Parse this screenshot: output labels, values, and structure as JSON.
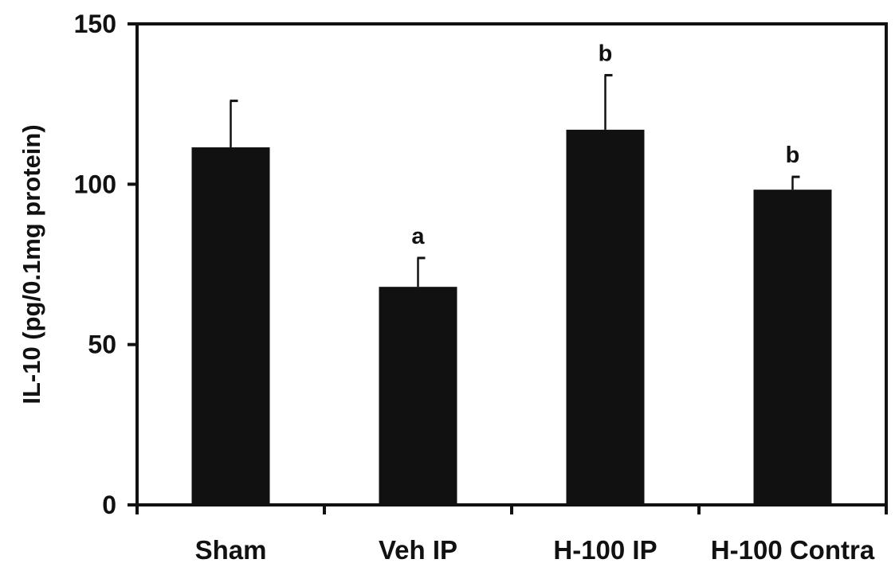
{
  "chart_data": {
    "type": "bar",
    "title": "",
    "xlabel": "",
    "ylabel": "IL-10 (pg/0.1mg protein)",
    "ylim": [
      0,
      150
    ],
    "yticks": [
      0,
      50,
      100,
      150
    ],
    "categories": [
      "Sham",
      "Veh IP",
      "H-100 IP",
      "H-100 Contra"
    ],
    "values": [
      111.5,
      68,
      117,
      98.3
    ],
    "errors": [
      14.5,
      9,
      17,
      4
    ],
    "annotations": [
      "",
      "a",
      "b",
      "b"
    ],
    "bar_color": "#111111",
    "grid": false,
    "legend": "none"
  }
}
